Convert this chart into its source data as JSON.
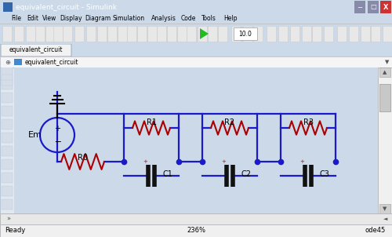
{
  "title": "equivalent_circuit - Simulink",
  "tab_label": "equivalent_circuit",
  "breadcrumb": "equivalent_circuit",
  "status_left": "Ready",
  "status_center": "236%",
  "status_right": "ode45",
  "wire_color": "#1a1acc",
  "resistor_color": "#aa0000",
  "cap_color": "#111111",
  "dot_color": "#1a1acc",
  "title_bar_bg": "#6a9fd8",
  "menu_bg": "#f0f0f0",
  "toolbar_bg": "#f0f0f0",
  "canvas_bg": "#ffffff",
  "outer_bg": "#ccd9e8",
  "tab_bg": "#d8e4f0",
  "close_color": "#d9534f",
  "win_border": "#8aaac8"
}
